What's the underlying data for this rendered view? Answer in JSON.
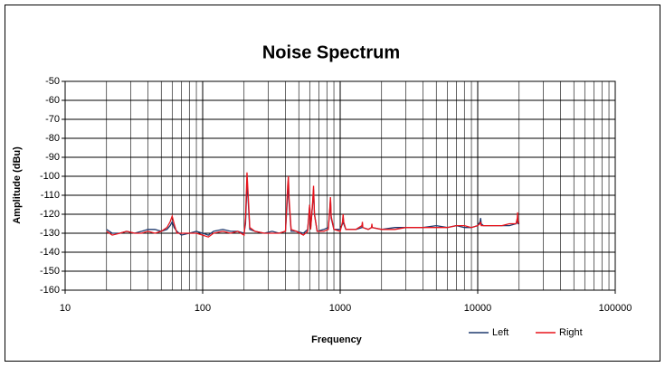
{
  "chart_data": {
    "type": "line",
    "title": "Noise Spectrum",
    "x_label": "Frequency",
    "y_label": "Amplitude (dBu)",
    "log_x": true,
    "grid": true,
    "minor_grid": true,
    "legend": "bottom-right",
    "xlim": [
      10,
      100000
    ],
    "xticks": [
      10,
      100,
      1000,
      10000,
      100000
    ],
    "ylim": [
      -160,
      -50
    ],
    "yticks": [
      -160,
      -150,
      -140,
      -130,
      -120,
      -110,
      -100,
      -90,
      -80,
      -70,
      -60,
      -50
    ],
    "x": [
      20,
      22,
      25,
      28,
      32,
      36,
      40,
      45,
      50,
      55,
      58,
      60,
      62,
      65,
      70,
      80,
      90,
      100,
      110,
      120,
      140,
      160,
      180,
      200,
      205,
      210,
      215,
      220,
      240,
      280,
      320,
      360,
      400,
      415,
      420,
      425,
      440,
      480,
      540,
      580,
      600,
      610,
      630,
      640,
      650,
      680,
      760,
      820,
      840,
      850,
      860,
      900,
      1000,
      1040,
      1050,
      1060,
      1100,
      1300,
      1440,
      1450,
      1460,
      1600,
      1690,
      1700,
      1710,
      2000,
      2500,
      3000,
      4000,
      5000,
      6000,
      7000,
      8000,
      9000,
      10000,
      10400,
      10500,
      10600,
      11000,
      13000,
      15000,
      17000,
      19000,
      19400,
      19500,
      19600,
      20000
    ],
    "series": [
      {
        "name": "Left",
        "color": "#1f3a6e",
        "values": [
          -128,
          -130,
          -130,
          -129,
          -130,
          -129,
          -128,
          -128,
          -129,
          -128,
          -126,
          -124,
          -127,
          -129,
          -131,
          -130,
          -129,
          -130,
          -131,
          -129,
          -128,
          -129,
          -129,
          -130,
          -125,
          -103,
          -115,
          -128,
          -129,
          -130,
          -129,
          -130,
          -129,
          -110,
          -101,
          -114,
          -129,
          -129,
          -130,
          -128,
          -115,
          -127,
          -115,
          -107,
          -120,
          -129,
          -128,
          -127,
          -118,
          -112,
          -122,
          -128,
          -128,
          -125,
          -121,
          -125,
          -128,
          -128,
          -127,
          -125,
          -127,
          -128,
          -127,
          -126,
          -127,
          -128,
          -127,
          -127,
          -127,
          -126,
          -127,
          -126,
          -127,
          -127,
          -126,
          -124,
          -122,
          -125,
          -126,
          -126,
          -126,
          -126,
          -125,
          -123,
          -124,
          -125,
          -125
        ]
      },
      {
        "name": "Right",
        "color": "#e8141c",
        "values": [
          -129,
          -131,
          -130,
          -129,
          -130,
          -130,
          -129,
          -130,
          -129,
          -127,
          -124,
          -121,
          -125,
          -130,
          -130,
          -130,
          -130,
          -131,
          -132,
          -130,
          -129,
          -130,
          -129,
          -131,
          -122,
          -98,
          -112,
          -127,
          -129,
          -130,
          -130,
          -130,
          -129,
          -105,
          -100,
          -112,
          -128,
          -129,
          -131,
          -129,
          -115,
          -128,
          -114,
          -105,
          -120,
          -129,
          -129,
          -128,
          -117,
          -111,
          -121,
          -128,
          -129,
          -124,
          -120,
          -124,
          -128,
          -128,
          -126,
          -124,
          -127,
          -128,
          -127,
          -125,
          -127,
          -128,
          -128,
          -127,
          -127,
          -127,
          -127,
          -126,
          -126,
          -127,
          -126,
          -125,
          -124,
          -126,
          -126,
          -126,
          -126,
          -125,
          -125,
          -122,
          -119,
          -124,
          -125
        ]
      }
    ]
  }
}
